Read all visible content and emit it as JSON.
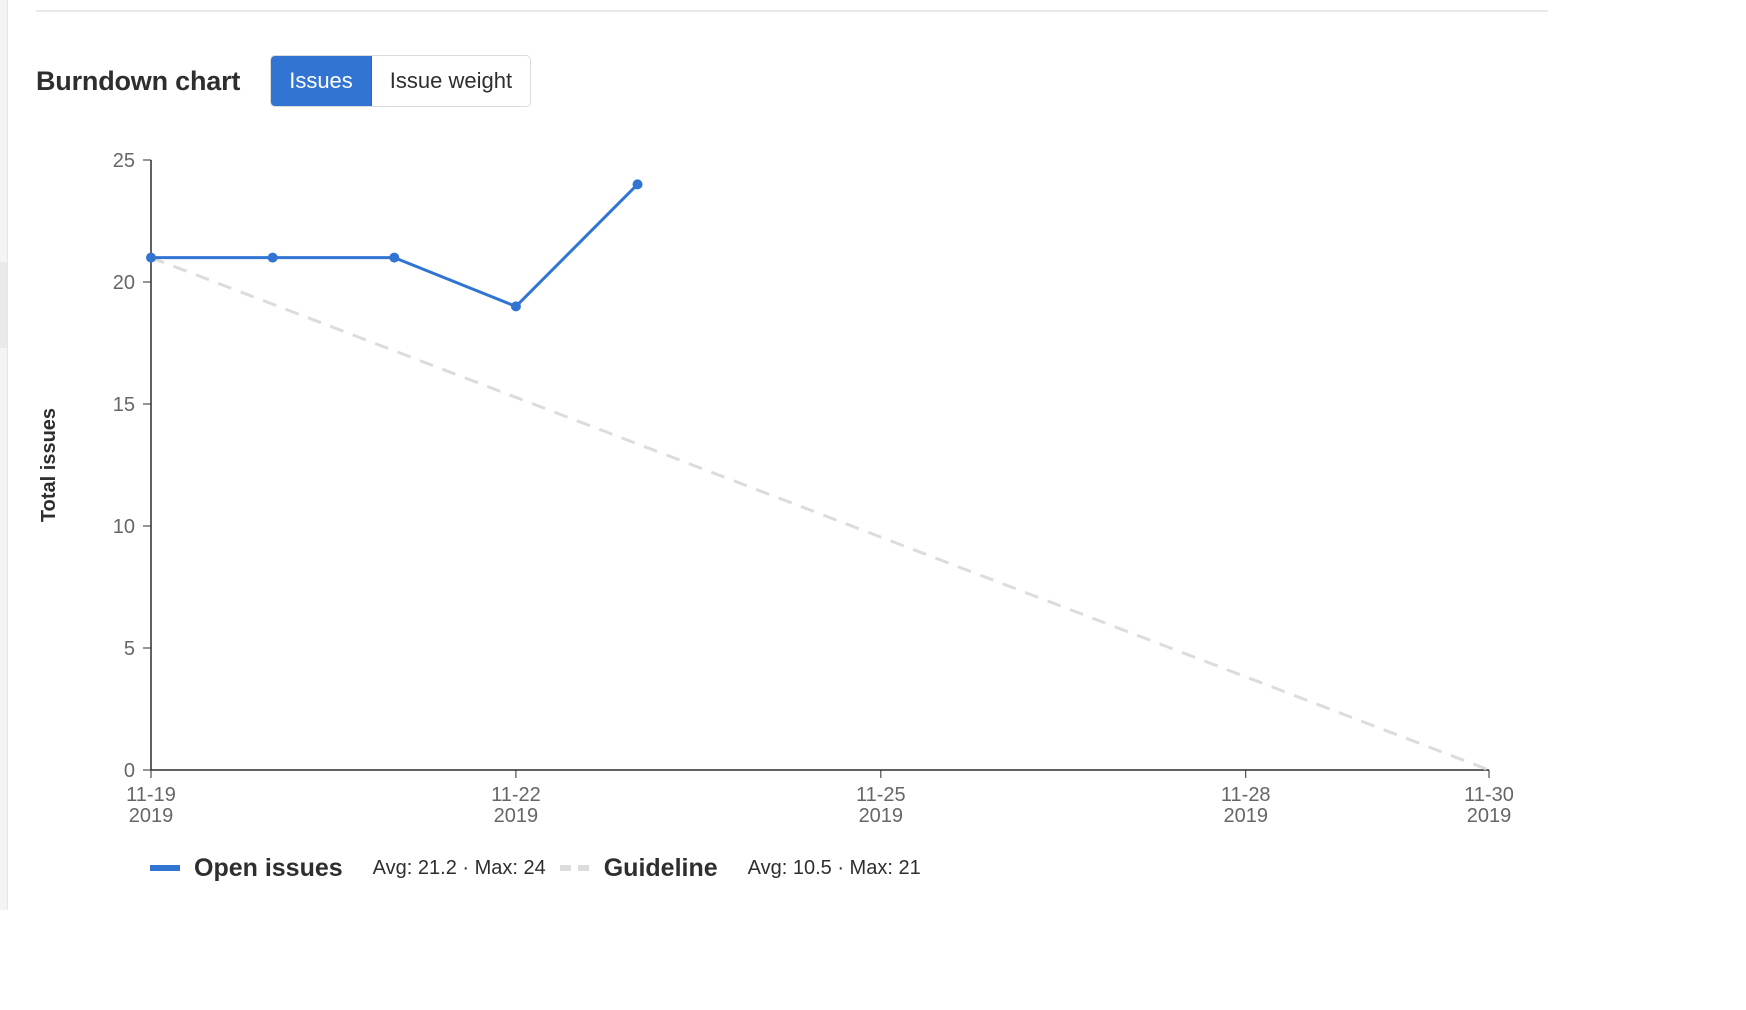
{
  "header": {
    "title": "Burndown chart",
    "toggle": {
      "options": [
        "Issues",
        "Issue weight"
      ],
      "selected": "Issues"
    }
  },
  "colors": {
    "accent": "#3174d2",
    "guideline": "#dcdcdc"
  },
  "chart_data": {
    "type": "line",
    "title": "",
    "ylabel": "Total issues",
    "ylim": [
      0,
      25
    ],
    "yticks": [
      0,
      5,
      10,
      15,
      20,
      25
    ],
    "xlim": [
      "2019-11-19",
      "2019-11-30"
    ],
    "xticks": [
      {
        "date": "2019-11-19",
        "label": [
          "11-19",
          "2019"
        ]
      },
      {
        "date": "2019-11-22",
        "label": [
          "11-22",
          "2019"
        ]
      },
      {
        "date": "2019-11-25",
        "label": [
          "11-25",
          "2019"
        ]
      },
      {
        "date": "2019-11-28",
        "label": [
          "11-28",
          "2019"
        ]
      },
      {
        "date": "2019-11-30",
        "label": [
          "11-30",
          "2019"
        ]
      }
    ],
    "series": [
      {
        "name": "Open issues",
        "style": "solid",
        "color": "#3174d2",
        "markers": true,
        "stats": "Avg: 21.2 · Max: 24",
        "points": [
          {
            "x": "2019-11-19",
            "y": 21
          },
          {
            "x": "2019-11-20",
            "y": 21
          },
          {
            "x": "2019-11-21",
            "y": 21
          },
          {
            "x": "2019-11-22",
            "y": 19
          },
          {
            "x": "2019-11-23",
            "y": 24
          }
        ]
      },
      {
        "name": "Guideline",
        "style": "dashed",
        "color": "#dcdcdc",
        "markers": false,
        "stats": "Avg: 10.5 · Max: 21",
        "points": [
          {
            "x": "2019-11-19",
            "y": 21
          },
          {
            "x": "2019-11-30",
            "y": 0
          }
        ]
      }
    ],
    "legend_position": "bottom-left"
  }
}
